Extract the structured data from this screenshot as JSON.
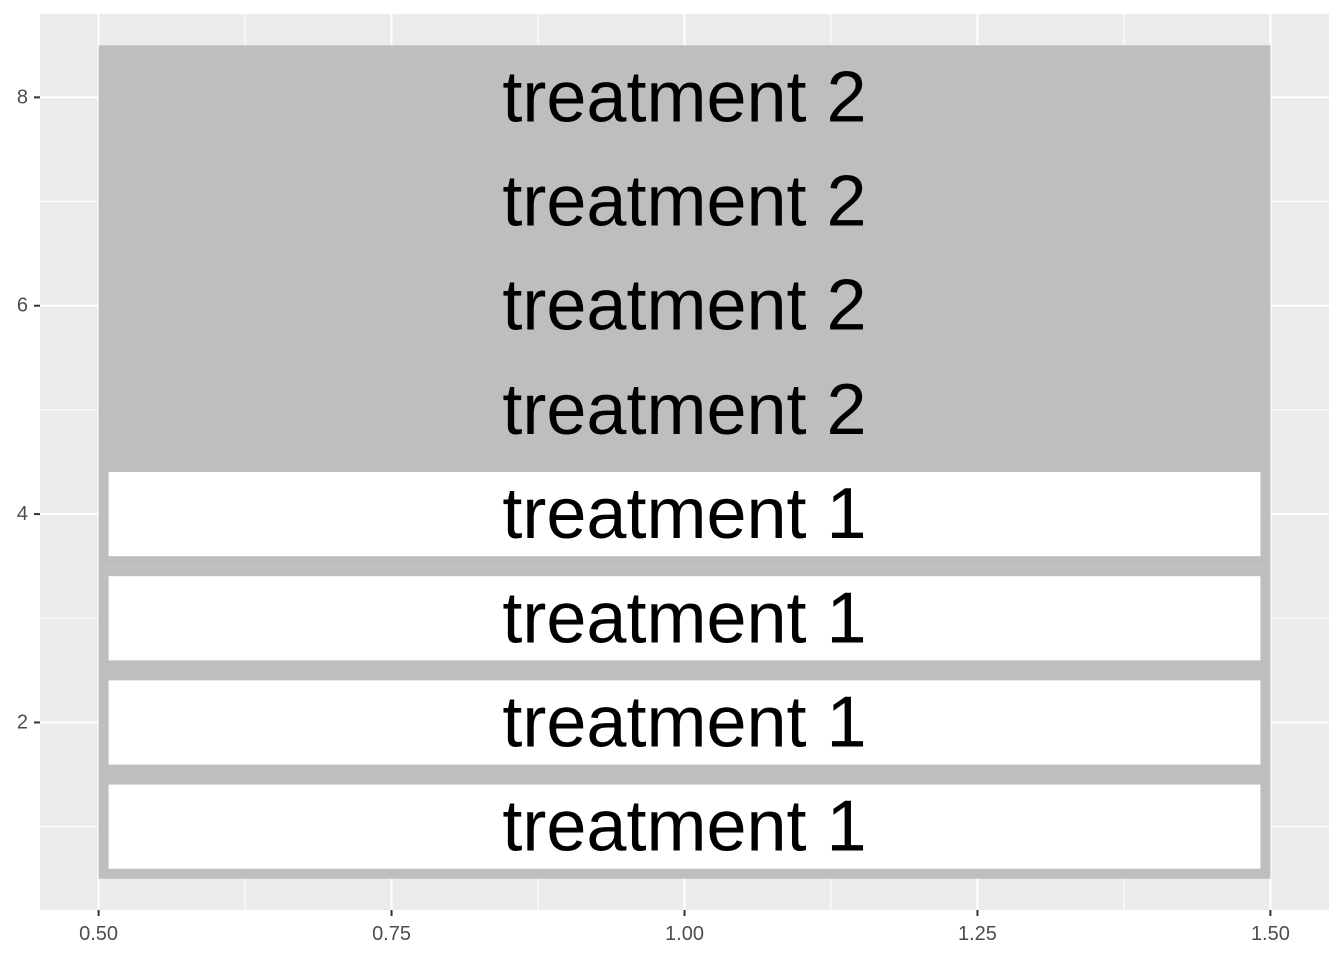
{
  "chart_data": {
    "type": "tile",
    "x": 1.0,
    "tile_width": 1.0,
    "tile_height": 1.0,
    "xlim": [
      0.45,
      1.55
    ],
    "ylim": [
      0.2,
      8.8
    ],
    "x_ticks": [
      0.5,
      0.75,
      1.0,
      1.25,
      1.5
    ],
    "x_tick_labels": [
      "0.50",
      "0.75",
      "1.00",
      "1.25",
      "1.50"
    ],
    "y_ticks": [
      2,
      4,
      6,
      8
    ],
    "y_tick_labels": [
      "2",
      "4",
      "6",
      "8"
    ],
    "grid": true,
    "tiles": [
      {
        "y": 1,
        "label": "treatment 1",
        "fill": "#ffffff"
      },
      {
        "y": 2,
        "label": "treatment 1",
        "fill": "#ffffff"
      },
      {
        "y": 3,
        "label": "treatment 1",
        "fill": "#ffffff"
      },
      {
        "y": 4,
        "label": "treatment 1",
        "fill": "#ffffff"
      },
      {
        "y": 5,
        "label": "treatment 2",
        "fill": "#bebebe"
      },
      {
        "y": 6,
        "label": "treatment 2",
        "fill": "#bebebe"
      },
      {
        "y": 7,
        "label": "treatment 2",
        "fill": "#bebebe"
      },
      {
        "y": 8,
        "label": "treatment 2",
        "fill": "#bebebe"
      }
    ],
    "tile_border_color": "#bebebe",
    "panel_background": "#ebebeb",
    "grid_color": "#ffffff"
  }
}
